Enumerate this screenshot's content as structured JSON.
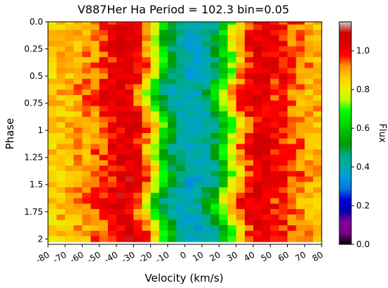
{
  "chart_data": {
    "type": "heatmap",
    "title": "V887Her  Ha Period = 102.3  bin=0.05",
    "xlabel": "Velocity (km/s)",
    "ylabel": "Phase",
    "xlim": [
      -80,
      80
    ],
    "ylim": [
      0.0,
      2.05
    ],
    "y_inverted": true,
    "x_ticks": [
      -80,
      -70,
      -60,
      -50,
      -40,
      -30,
      -20,
      -10,
      0,
      10,
      20,
      30,
      40,
      50,
      60,
      70,
      80
    ],
    "x_tick_labels": [
      "-80",
      "-70",
      "-60",
      "-50",
      "-40",
      "-30",
      "-20",
      "-10",
      "0",
      "10",
      "20",
      "30",
      "40",
      "50",
      "60",
      "70",
      "80"
    ],
    "y_ticks": [
      0.0,
      0.25,
      0.5,
      0.75,
      1.0,
      1.25,
      1.5,
      1.75,
      2.0
    ],
    "y_tick_labels": [
      "0.0",
      "0.25",
      "0.5",
      "0.75",
      "1",
      "1.25",
      "1.5",
      "1.75",
      "2"
    ],
    "colorbar": {
      "label": "Flux",
      "range": [
        0.0,
        1.15
      ],
      "ticks": [
        0.0,
        0.2,
        0.4,
        0.6,
        0.8,
        1.0
      ],
      "tick_labels": [
        "0.0",
        "0.2",
        "0.4",
        "0.6",
        "0.8",
        "1.0"
      ],
      "colormap": "nipy_spectral"
    },
    "grid": false,
    "legend": "none",
    "phase_bins": [
      0.0,
      0.05,
      0.1,
      0.15,
      0.2,
      0.25,
      0.3,
      0.35,
      0.4,
      0.45,
      0.5,
      0.55,
      0.6,
      0.65,
      0.7,
      0.75,
      0.8,
      0.85,
      0.9,
      0.95,
      1.0,
      1.05,
      1.1,
      1.15,
      1.2,
      1.25,
      1.3,
      1.35,
      1.4,
      1.45,
      1.5,
      1.55,
      1.6,
      1.65,
      1.7,
      1.75,
      1.8,
      1.85,
      1.9,
      1.95,
      2.0
    ],
    "velocity_bins": [
      -80,
      -75,
      -70,
      -65,
      -60,
      -55,
      -50,
      -45,
      -40,
      -35,
      -30,
      -25,
      -20,
      -15,
      -10,
      -5,
      0,
      5,
      10,
      15,
      20,
      25,
      30,
      35,
      40,
      45,
      50,
      55,
      60,
      65,
      70,
      75
    ],
    "profile_velocity": [
      -80,
      -70,
      -60,
      -50,
      -45,
      -40,
      -35,
      -30,
      -25,
      -20,
      -15,
      -10,
      0,
      10,
      15,
      20,
      25,
      30,
      35,
      40,
      45,
      50,
      60,
      70,
      80
    ],
    "profile_flux": [
      0.86,
      0.88,
      0.91,
      0.96,
      1.0,
      1.04,
      1.05,
      1.0,
      0.9,
      0.74,
      0.58,
      0.46,
      0.38,
      0.42,
      0.5,
      0.63,
      0.78,
      0.92,
      1.0,
      1.03,
      1.03,
      1.0,
      0.95,
      0.9,
      0.87
    ],
    "center_velocity_by_phase": [
      5,
      4,
      3,
      2,
      2,
      3,
      4,
      5,
      5,
      4,
      3,
      1,
      -1,
      -2,
      -2,
      -1,
      1,
      3,
      5,
      6,
      5,
      4,
      3,
      2,
      2,
      3,
      4,
      5,
      5,
      4,
      3,
      1,
      -1,
      -2,
      -2,
      -1,
      1,
      3,
      5,
      6,
      5
    ]
  }
}
